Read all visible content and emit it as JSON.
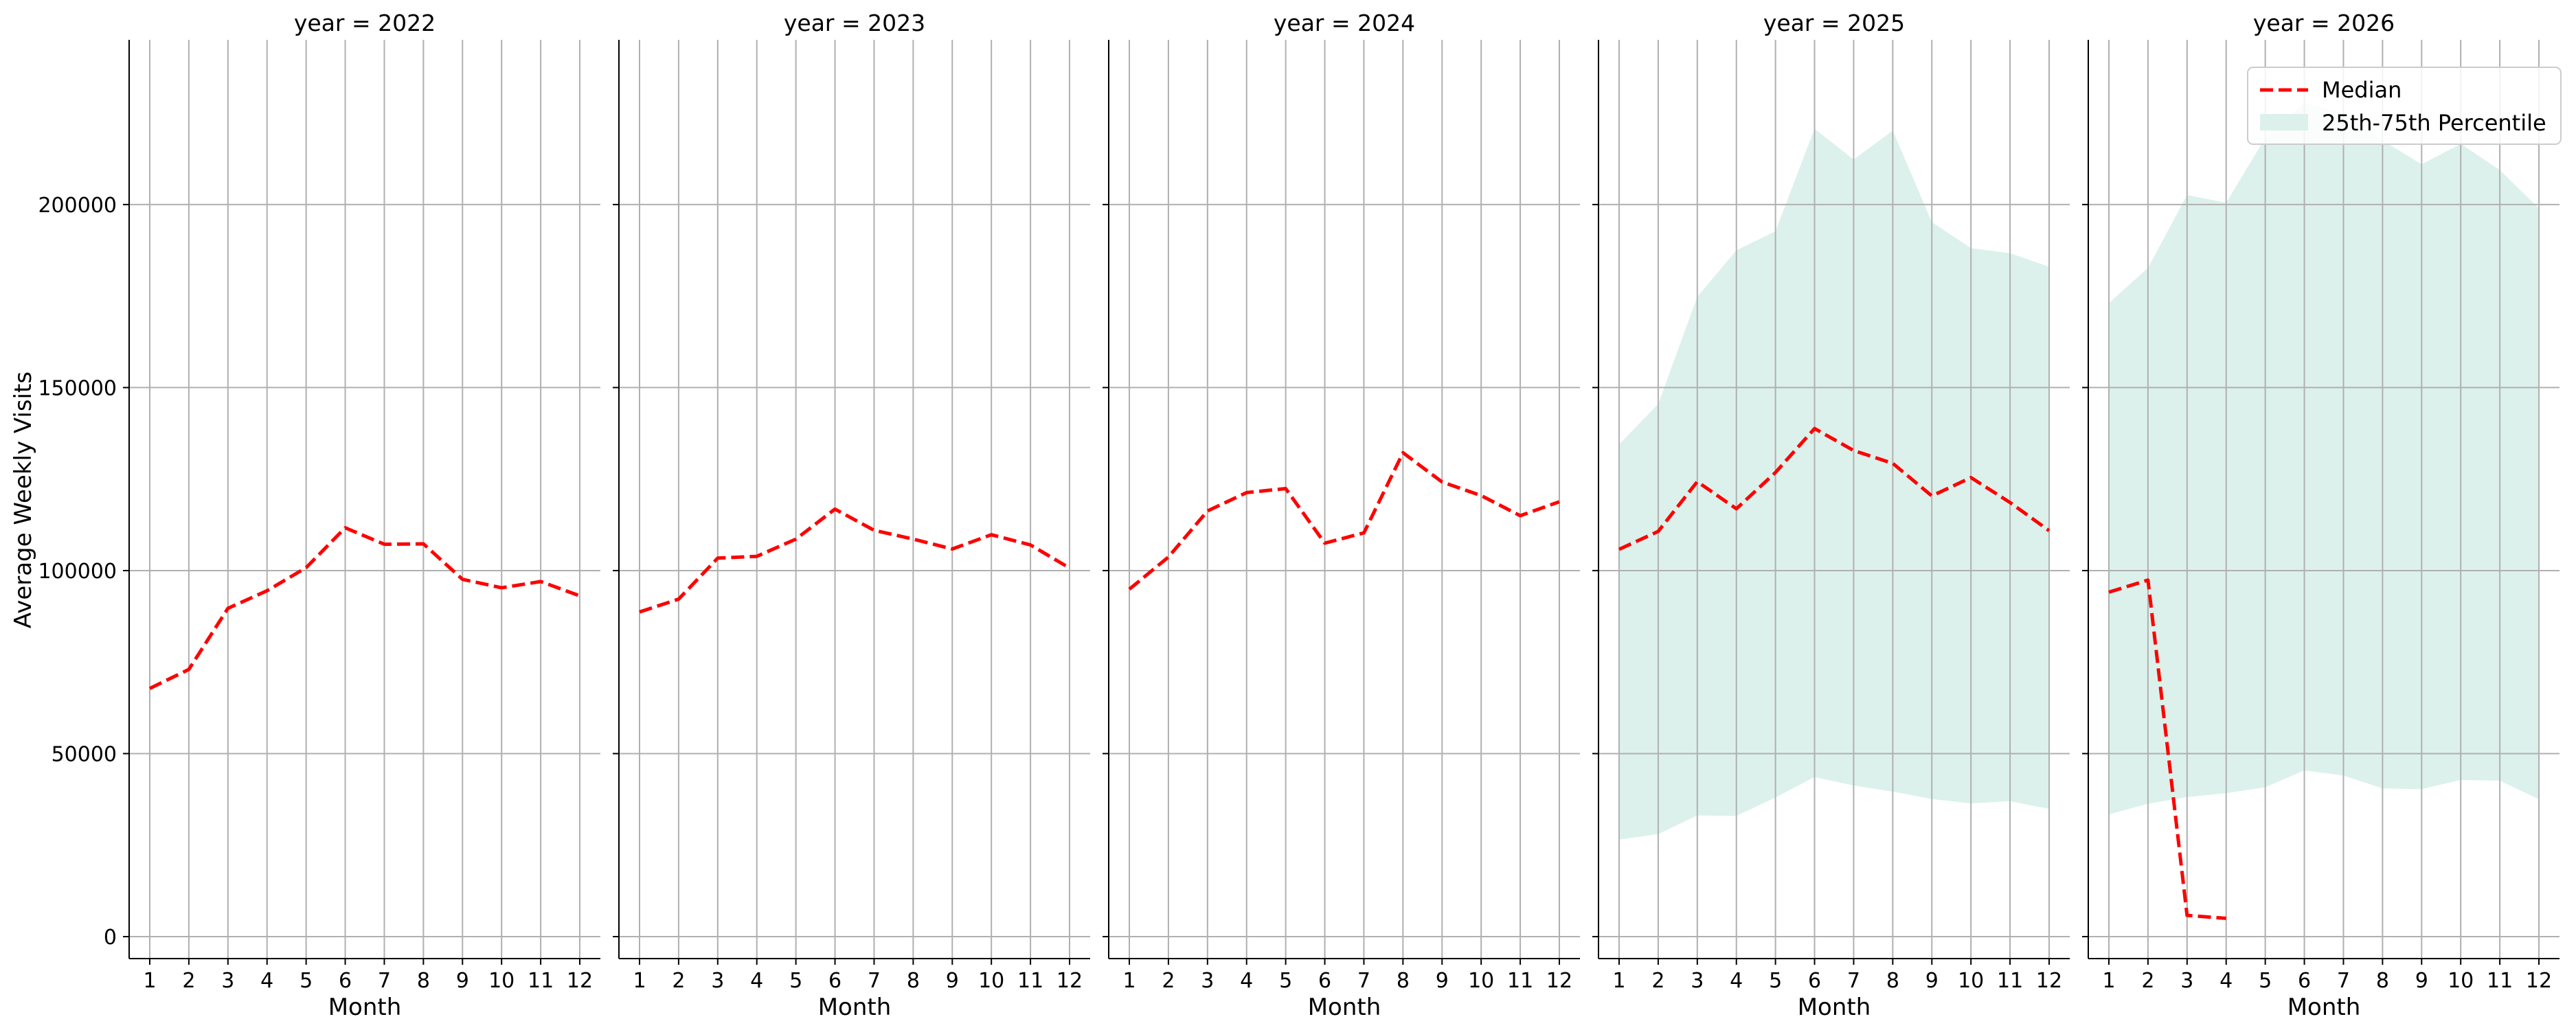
{
  "chart_data": {
    "type": "line",
    "ylabel": "Average Weekly Visits",
    "xlabel": "Month",
    "categories": [
      1,
      2,
      3,
      4,
      5,
      6,
      7,
      8,
      9,
      10,
      11,
      12
    ],
    "ylim": [
      -6000,
      245000
    ],
    "yticks": [
      0,
      50000,
      100000,
      150000,
      200000
    ],
    "grid": true,
    "legend": {
      "placement": "top-right",
      "entries": [
        "Median",
        "25th-75th Percentile"
      ]
    },
    "colors": {
      "median": "#ff0000",
      "band": "#dcf1eb",
      "grid": "#b0b0b0"
    },
    "panels": [
      {
        "title": "year = 2022",
        "median": [
          67800,
          73000,
          89700,
          94500,
          100800,
          111700,
          107200,
          107300,
          97600,
          95300,
          97000,
          93100
        ],
        "p25": null,
        "p75": null
      },
      {
        "title": "year = 2023",
        "median": [
          88700,
          92200,
          103400,
          103900,
          108600,
          116800,
          111000,
          108600,
          105900,
          109800,
          107000,
          100700
        ],
        "p25": null,
        "p75": null
      },
      {
        "title": "year = 2024",
        "median": [
          94900,
          103700,
          116300,
          121300,
          122400,
          107500,
          110300,
          132200,
          124200,
          120500,
          115000,
          118800
        ],
        "p25": null,
        "p75": null
      },
      {
        "title": "year = 2025",
        "median": [
          105800,
          110700,
          124300,
          116900,
          126800,
          138800,
          132800,
          129300,
          120400,
          125400,
          118600,
          110900
        ],
        "p25": [
          26500,
          28000,
          33100,
          33000,
          38000,
          43600,
          41300,
          39600,
          37600,
          36400,
          37000,
          34900
        ],
        "p75": [
          134500,
          145500,
          174800,
          187500,
          192700,
          220700,
          212300,
          220200,
          195200,
          188100,
          186700,
          183000
        ]
      },
      {
        "title": "year = 2026",
        "median": [
          94100,
          97400,
          5800,
          5000,
          null,
          null,
          null,
          null,
          null,
          null,
          null,
          null
        ],
        "p25": [
          33400,
          36300,
          38100,
          39200,
          40800,
          45400,
          44000,
          40500,
          40300,
          42800,
          42600,
          37500
        ],
        "p75": [
          173100,
          182700,
          202600,
          200500,
          218200,
          227800,
          225000,
          217500,
          211000,
          216600,
          209400,
          199000
        ]
      }
    ]
  }
}
